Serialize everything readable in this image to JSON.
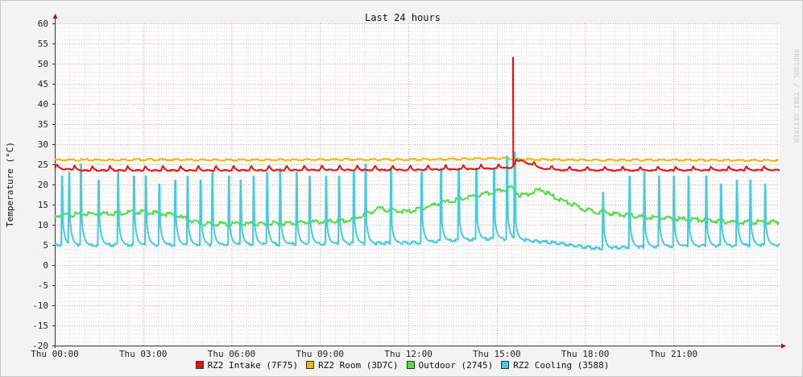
{
  "chart_data": {
    "type": "line",
    "title": "Last 24 hours",
    "ylabel": "Temperature (°C)",
    "xlabel": "",
    "ylim": [
      -20,
      60
    ],
    "y_ticks": [
      60,
      55,
      50,
      45,
      40,
      35,
      30,
      25,
      20,
      15,
      10,
      5,
      0,
      -5,
      -10,
      -15,
      -20
    ],
    "x_ticks": [
      "Thu 00:00",
      "Thu 03:00",
      "Thu 06:00",
      "Thu 09:00",
      "Thu 12:00",
      "Thu 15:00",
      "Thu 18:00",
      "Thu 21:00"
    ],
    "x_range_hours": [
      0,
      24.6
    ],
    "grid": true,
    "legend_position": "bottom",
    "watermark": "RRDTOOL / TOBI OETIKER",
    "series": [
      {
        "name": "RZ2 Intake (7F75)",
        "color": "#ea1111",
        "baseline": 23.5,
        "peak": 24.7,
        "peak_hours_step": 0.6,
        "spike": {
          "x": 15.55,
          "y": 51.5
        },
        "points": [
          [
            0,
            24.0
          ],
          [
            1,
            23.5
          ],
          [
            3,
            23.5
          ],
          [
            6,
            23.5
          ],
          [
            9,
            23.6
          ],
          [
            12,
            23.6
          ],
          [
            14,
            23.8
          ],
          [
            15.0,
            24.0
          ],
          [
            15.5,
            24.2
          ],
          [
            15.8,
            26.0
          ],
          [
            16.5,
            24.0
          ],
          [
            17,
            23.6
          ],
          [
            18,
            23.5
          ],
          [
            21,
            23.5
          ],
          [
            24.5,
            23.6
          ]
        ]
      },
      {
        "name": "RZ2 Room (3D7C)",
        "color": "#e8b811",
        "points": [
          [
            0,
            26.2
          ],
          [
            3,
            26.3
          ],
          [
            6,
            26.2
          ],
          [
            9,
            26.3
          ],
          [
            12,
            26.3
          ],
          [
            14.5,
            26.5
          ],
          [
            15.3,
            26.6
          ],
          [
            15.8,
            26.4
          ],
          [
            18,
            26.2
          ],
          [
            21,
            26.2
          ],
          [
            24.5,
            26.1
          ]
        ]
      },
      {
        "name": "Outdoor (2745)",
        "color": "#55dd44",
        "points": [
          [
            0,
            12.5
          ],
          [
            1,
            13.0
          ],
          [
            2,
            13.2
          ],
          [
            3,
            13.5
          ],
          [
            4,
            12.8
          ],
          [
            5,
            10.5
          ],
          [
            6,
            10.5
          ],
          [
            7,
            10.5
          ],
          [
            8,
            10.7
          ],
          [
            9,
            11.0
          ],
          [
            10,
            11.3
          ],
          [
            11,
            14.3
          ],
          [
            12,
            13.5
          ],
          [
            13,
            15.5
          ],
          [
            14,
            17.0
          ],
          [
            15,
            18.5
          ],
          [
            15.5,
            19.5
          ],
          [
            15.8,
            17.5
          ],
          [
            16.5,
            19.0
          ],
          [
            17,
            17.0
          ],
          [
            18,
            14.0
          ],
          [
            19,
            13.0
          ],
          [
            20,
            12.2
          ],
          [
            21,
            11.8
          ],
          [
            22,
            11.5
          ],
          [
            23,
            11.0
          ],
          [
            24.5,
            11.0
          ]
        ]
      },
      {
        "name": "RZ2 Cooling (3588)",
        "color": "#44ccdd",
        "base_points": [
          [
            0,
            5.0
          ],
          [
            4,
            5.0
          ],
          [
            8,
            5.2
          ],
          [
            12,
            5.5
          ],
          [
            14.5,
            6.5
          ],
          [
            15.5,
            6.5
          ],
          [
            17,
            5.5
          ],
          [
            18.5,
            4.0
          ],
          [
            19.5,
            4.5
          ],
          [
            24.5,
            5.0
          ]
        ],
        "peaks": [
          [
            0.25,
            22
          ],
          [
            0.5,
            23
          ],
          [
            0.9,
            25
          ],
          [
            1.5,
            21
          ],
          [
            2.15,
            23
          ],
          [
            2.7,
            22
          ],
          [
            3.1,
            22
          ],
          [
            3.55,
            20
          ],
          [
            4.1,
            21
          ],
          [
            4.5,
            22
          ],
          [
            4.95,
            21
          ],
          [
            5.35,
            23
          ],
          [
            5.9,
            22
          ],
          [
            6.3,
            21
          ],
          [
            6.75,
            22
          ],
          [
            7.2,
            23
          ],
          [
            7.65,
            24
          ],
          [
            8.2,
            23
          ],
          [
            8.65,
            22
          ],
          [
            9.2,
            22
          ],
          [
            9.65,
            22
          ],
          [
            10.15,
            23
          ],
          [
            10.55,
            25
          ],
          [
            11.4,
            24
          ],
          [
            12.45,
            23
          ],
          [
            13.1,
            24
          ],
          [
            13.7,
            24
          ],
          [
            14.3,
            24
          ],
          [
            14.9,
            24
          ],
          [
            15.35,
            27
          ],
          [
            15.6,
            28
          ],
          [
            18.6,
            18
          ],
          [
            19.5,
            22
          ],
          [
            20.0,
            23
          ],
          [
            20.5,
            22
          ],
          [
            21.0,
            22
          ],
          [
            21.5,
            22
          ],
          [
            22.1,
            22
          ],
          [
            22.6,
            20
          ],
          [
            23.15,
            21
          ],
          [
            23.6,
            21
          ],
          [
            24.1,
            20
          ]
        ]
      }
    ]
  },
  "legend": {
    "items": [
      {
        "label": "RZ2 Intake (7F75)",
        "color": "#ea1111"
      },
      {
        "label": "RZ2 Room (3D7C)",
        "color": "#e8b811"
      },
      {
        "label": "Outdoor (2745)",
        "color": "#55dd44"
      },
      {
        "label": "RZ2 Cooling (3588)",
        "color": "#44ccdd"
      }
    ]
  }
}
